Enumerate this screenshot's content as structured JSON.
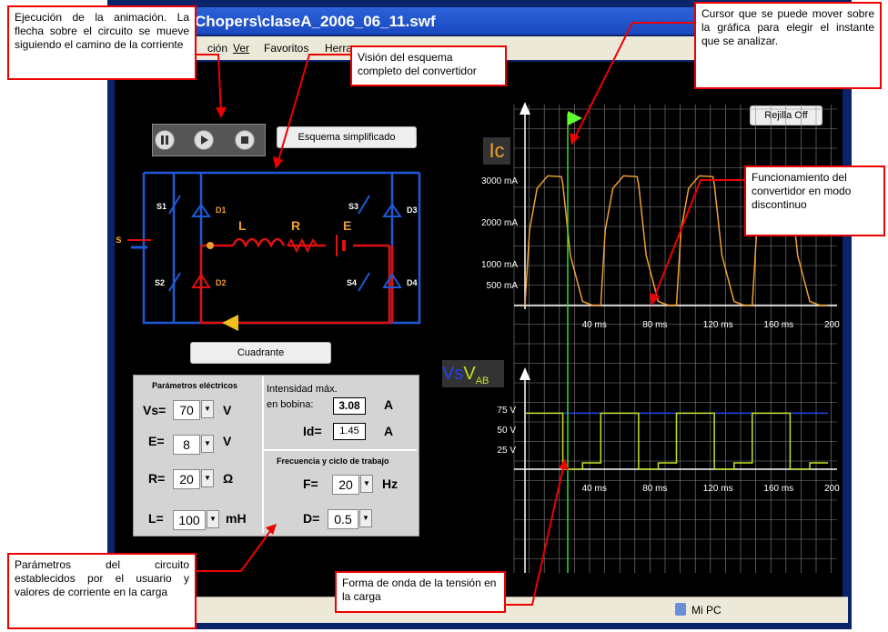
{
  "window": {
    "title": "Chopers\\claseA_2006_06_11.swf",
    "status_pc": "Mi PC"
  },
  "menu": {
    "edit": "ción",
    "view": "Ver",
    "favorites": "Favoritos",
    "tools": "Herra"
  },
  "controls": {
    "scheme_button": "Esquema simplificado",
    "quadrant_button": "Cuadrante",
    "grid_button": "Rejilla Off"
  },
  "circuit": {
    "s1": "S1",
    "s2": "S2",
    "s3": "S3",
    "s4": "S4",
    "d1": "D1",
    "d2": "D2",
    "d3": "D3",
    "d4": "D4",
    "l": "L",
    "r": "R",
    "e": "E",
    "s": "s"
  },
  "params": {
    "title_electric": "Parámetros eléctricos",
    "vs_label": "Vs=",
    "vs_value": "70",
    "vs_unit": "V",
    "e_label": "E=",
    "e_value": "8",
    "e_unit": "V",
    "r_label": "R=",
    "r_value": "20",
    "r_unit": "Ω",
    "l_label": "L=",
    "l_value": "100",
    "l_unit": "mH",
    "imax_label1": "Intensidad máx.",
    "imax_label2": "en bobina:",
    "imax_value": "3.08",
    "imax_unit": "A",
    "id_label": "Id=",
    "id_value": "1.45",
    "id_unit": "A",
    "title_freq": "Frecuencia y ciclo de trabajo",
    "f_label": "F=",
    "f_value": "20",
    "f_unit": "Hz",
    "d_label": "D=",
    "d_value": "0.5"
  },
  "charts": {
    "ic_label": "Ic",
    "vs_label": "Vs",
    "vab_label": "V",
    "vab_sub": "AB",
    "ic_yticks": [
      "3000 mA",
      "2000 mA",
      "1000 mA",
      "500 mA"
    ],
    "v_yticks": [
      "75 V",
      "50 V",
      "25 V"
    ],
    "xticks": [
      "40 ms",
      "80 ms",
      "120 ms",
      "160 ms",
      "200 ms"
    ]
  },
  "chart_data": [
    {
      "type": "line",
      "title": "Ic",
      "ylabel": "mA",
      "xlabel": "ms",
      "xlim": [
        0,
        200
      ],
      "ylim": [
        0,
        3200
      ],
      "series": [
        {
          "name": "Ic",
          "x": [
            0,
            3,
            8,
            15,
            24,
            25,
            30,
            38,
            45,
            50,
            53,
            58,
            65,
            74,
            75,
            80,
            88,
            95,
            100,
            103,
            108,
            115,
            124,
            125,
            130,
            138,
            145,
            150,
            153,
            158,
            165,
            174,
            175,
            180,
            188,
            195,
            200
          ],
          "y": [
            0,
            1800,
            2800,
            3100,
            3080,
            2900,
            1200,
            100,
            0,
            0,
            1800,
            2800,
            3100,
            3080,
            2900,
            1200,
            100,
            0,
            0,
            1800,
            2800,
            3100,
            3080,
            2900,
            1200,
            100,
            0,
            0,
            1800,
            2800,
            3100,
            3080,
            2900,
            1200,
            100,
            0,
            0
          ]
        }
      ]
    },
    {
      "type": "line",
      "title": "Vs VAB",
      "ylabel": "V",
      "xlabel": "ms",
      "xlim": [
        0,
        200
      ],
      "ylim": [
        0,
        80
      ],
      "series": [
        {
          "name": "Vs",
          "x": [
            0,
            200
          ],
          "y": [
            70,
            70
          ]
        },
        {
          "name": "VAB",
          "x": [
            0,
            25,
            25,
            38,
            38,
            50,
            50,
            75,
            75,
            88,
            88,
            100,
            100,
            125,
            125,
            138,
            138,
            150,
            150,
            175,
            175,
            188,
            188,
            200
          ],
          "y": [
            70,
            70,
            -70,
            -70,
            8,
            8,
            70,
            70,
            -70,
            -70,
            8,
            8,
            70,
            70,
            -70,
            -70,
            8,
            8,
            70,
            70,
            -70,
            -70,
            8,
            8
          ]
        }
      ]
    }
  ],
  "annotations": {
    "anim": "Ejecución de la animación. La flecha sobre el circuito se mueve siguiendo el camino de la corriente",
    "scheme": "Visión del esquema completo del convertidor",
    "cursor": "Cursor que se puede mover sobre la gráfica para elegir el instante que se analizar.",
    "discont": "Funcionamiento del convertidor en modo discontinuo",
    "params": "Parámetros del circuito establecidos por el usuario y valores de corriente en la carga",
    "wave": "Forma de onda de la tensión en la carga"
  }
}
